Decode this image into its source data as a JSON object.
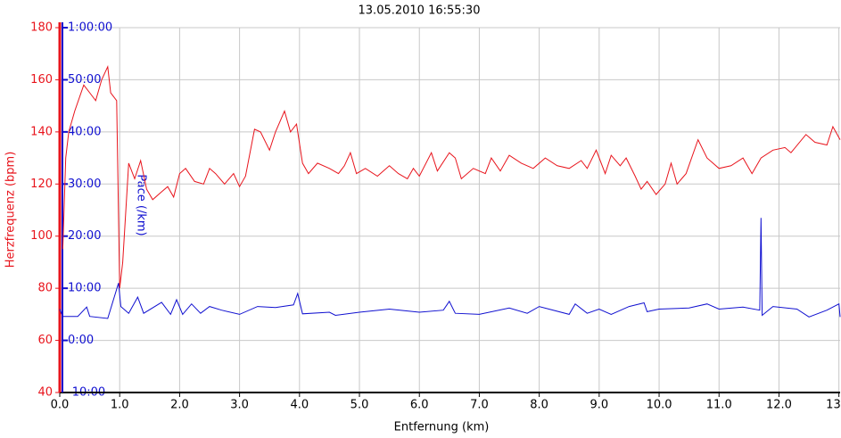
{
  "chart_data": {
    "type": "line",
    "title": "13.05.2010 16:55:30",
    "xlabel": "Entfernung (km)",
    "ylabel": "Herzfrequenz (bpm)",
    "y2label": "Pace (/km)",
    "xlim": [
      0,
      13.02
    ],
    "xticks": [
      {
        "value": 0,
        "label": "0.0"
      },
      {
        "value": 1,
        "label": "1.0"
      },
      {
        "value": 2,
        "label": "2.0"
      },
      {
        "value": 3,
        "label": "3.0"
      },
      {
        "value": 4,
        "label": "4.0"
      },
      {
        "value": 5,
        "label": "5.0"
      },
      {
        "value": 6,
        "label": "6.0"
      },
      {
        "value": 7,
        "label": "7.0"
      },
      {
        "value": 8,
        "label": "8.0"
      },
      {
        "value": 9,
        "label": "9.0"
      },
      {
        "value": 10,
        "label": "10.0"
      },
      {
        "value": 11,
        "label": "11.0"
      },
      {
        "value": 12,
        "label": "12.0"
      },
      {
        "value": 13,
        "label": "13.0"
      }
    ],
    "ylim": [
      40,
      180
    ],
    "yticks": [
      40,
      60,
      80,
      100,
      120,
      140,
      160,
      180
    ],
    "y2lim": [
      -10,
      60
    ],
    "y2ticks": [
      {
        "value": -10,
        "label": "-10:00"
      },
      {
        "value": 0,
        "label": "0:00"
      },
      {
        "value": 10,
        "label": "10:00"
      },
      {
        "value": 20,
        "label": "20:00"
      },
      {
        "value": 30,
        "label": "30:00"
      },
      {
        "value": 40,
        "label": "40:00"
      },
      {
        "value": 50,
        "label": "50:00"
      },
      {
        "value": 60,
        "label": "1:00:00"
      }
    ],
    "grid": true,
    "ycolor": "#e8141c",
    "y2color": "#1010d0",
    "series": [
      {
        "name": "Herzfrequenz",
        "color": "#e8141c",
        "axis": "y",
        "x": [
          0.05,
          0.1,
          0.15,
          0.25,
          0.4,
          0.5,
          0.6,
          0.7,
          0.8,
          0.85,
          0.95,
          1.0,
          1.05,
          1.15,
          1.25,
          1.35,
          1.45,
          1.55,
          1.7,
          1.8,
          1.9,
          2.0,
          2.1,
          2.25,
          2.4,
          2.5,
          2.6,
          2.75,
          2.9,
          3.0,
          3.1,
          3.25,
          3.35,
          3.5,
          3.6,
          3.75,
          3.85,
          3.95,
          4.05,
          4.15,
          4.3,
          4.5,
          4.65,
          4.75,
          4.85,
          4.95,
          5.1,
          5.3,
          5.5,
          5.65,
          5.8,
          5.9,
          6.0,
          6.2,
          6.3,
          6.5,
          6.6,
          6.7,
          6.9,
          7.1,
          7.2,
          7.35,
          7.5,
          7.7,
          7.9,
          8.1,
          8.3,
          8.5,
          8.7,
          8.8,
          8.95,
          9.1,
          9.2,
          9.35,
          9.45,
          9.6,
          9.7,
          9.8,
          9.95,
          10.1,
          10.2,
          10.3,
          10.45,
          10.65,
          10.8,
          11.0,
          11.2,
          11.4,
          11.55,
          11.7,
          11.9,
          12.1,
          12.2,
          12.45,
          12.6,
          12.8,
          12.9,
          13.02
        ],
        "values": [
          95,
          130,
          140,
          148,
          158,
          155,
          152,
          160,
          165,
          155,
          152,
          80,
          90,
          128,
          122,
          129,
          118,
          114,
          117,
          119,
          115,
          124,
          126,
          121,
          120,
          126,
          124,
          120,
          124,
          119,
          123,
          141,
          140,
          133,
          140,
          148,
          140,
          143,
          128,
          124,
          128,
          126,
          124,
          127,
          132,
          124,
          126,
          123,
          127,
          124,
          122,
          126,
          123,
          132,
          125,
          132,
          130,
          122,
          126,
          124,
          130,
          125,
          131,
          128,
          126,
          130,
          127,
          126,
          129,
          126,
          133,
          124,
          131,
          127,
          130,
          123,
          118,
          121,
          116,
          120,
          128,
          120,
          124,
          137,
          130,
          126,
          127,
          130,
          124,
          130,
          133,
          134,
          132,
          139,
          136,
          135,
          142,
          137
        ]
      },
      {
        "name": "Pace",
        "color": "#1010d0",
        "axis": "y2",
        "x": [
          0.0,
          0.05,
          0.3,
          0.45,
          0.5,
          0.8,
          0.98,
          1.02,
          1.15,
          1.3,
          1.4,
          1.7,
          1.85,
          1.95,
          2.05,
          2.2,
          2.35,
          2.5,
          2.7,
          3.0,
          3.3,
          3.6,
          3.9,
          3.97,
          4.05,
          4.5,
          4.6,
          5.0,
          5.5,
          6.0,
          6.4,
          6.5,
          6.6,
          7.0,
          7.5,
          7.8,
          8.0,
          8.5,
          8.6,
          8.8,
          9.0,
          9.2,
          9.5,
          9.75,
          9.8,
          10.0,
          10.5,
          10.8,
          11.0,
          11.4,
          11.68,
          11.7,
          11.72,
          11.9,
          12.3,
          12.5,
          12.8,
          13.0,
          13.02
        ],
        "values": [
          6,
          4.6,
          4.6,
          6.4,
          4.6,
          4.2,
          11,
          6.5,
          5.2,
          8.3,
          5.2,
          7.3,
          5.0,
          7.8,
          5.0,
          7.0,
          5.2,
          6.5,
          5.8,
          5.0,
          6.5,
          6.3,
          6.8,
          9.0,
          5.1,
          5.4,
          4.8,
          5.4,
          6.0,
          5.4,
          5.8,
          7.5,
          5.2,
          5.0,
          6.2,
          5.2,
          6.5,
          5.0,
          7.0,
          5.2,
          6.0,
          5.0,
          6.5,
          7.2,
          5.5,
          6.0,
          6.2,
          7.0,
          6.0,
          6.4,
          5.8,
          23.5,
          4.8,
          6.5,
          6.0,
          4.5,
          5.8,
          7.0,
          4.5
        ]
      }
    ]
  }
}
